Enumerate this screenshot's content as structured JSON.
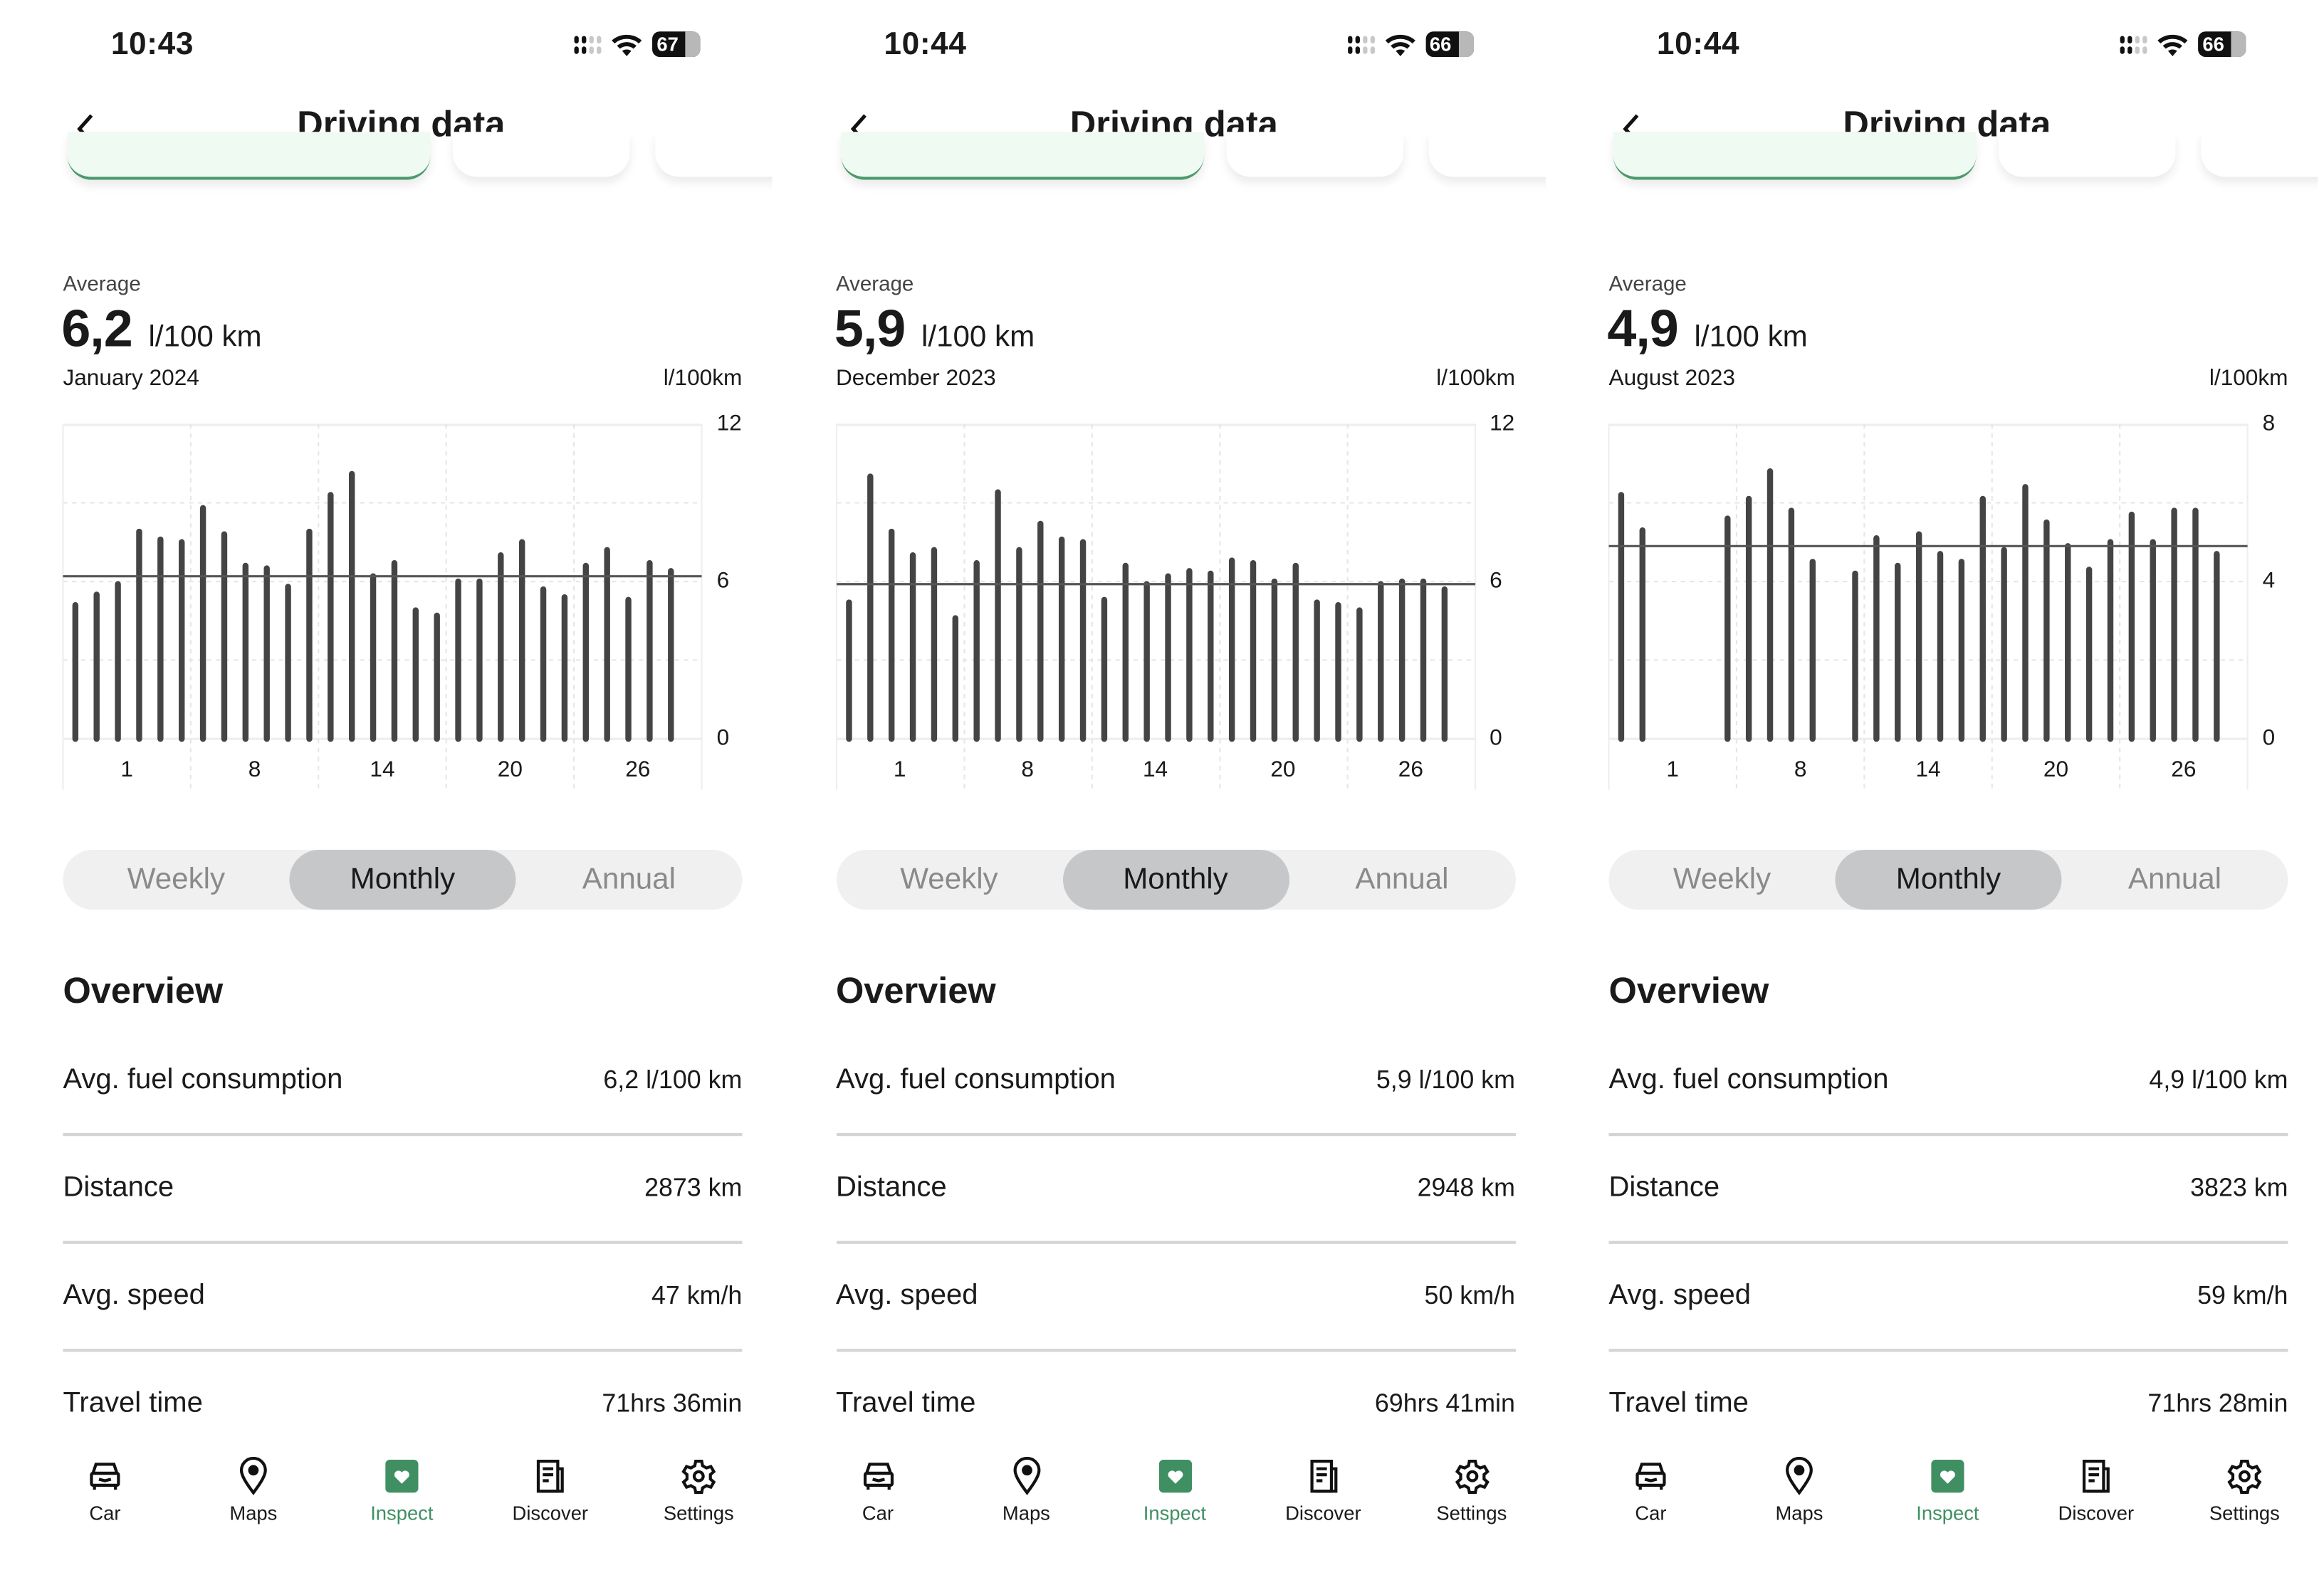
{
  "screens": [
    {
      "status": {
        "time": "10:43",
        "battery": "67"
      },
      "header": {
        "title": "Driving data"
      },
      "summary": {
        "label": "Average",
        "value": "6,2",
        "unit": "l/100 km",
        "period": "January 2024",
        "axis_unit": "l/100km"
      },
      "segments": [
        {
          "label": "Weekly",
          "active": false
        },
        {
          "label": "Monthly",
          "active": true
        },
        {
          "label": "Annual",
          "active": false
        }
      ],
      "overview": {
        "title": "Overview",
        "rows": [
          {
            "label": "Avg. fuel consumption",
            "value": "6,2 l/100 km"
          },
          {
            "label": "Distance",
            "value": "2873 km"
          },
          {
            "label": "Avg. speed",
            "value": "47 km/h"
          },
          {
            "label": "Travel time",
            "value": "71hrs 36min"
          }
        ]
      }
    },
    {
      "status": {
        "time": "10:44",
        "battery": "66"
      },
      "header": {
        "title": "Driving data"
      },
      "summary": {
        "label": "Average",
        "value": "5,9",
        "unit": "l/100 km",
        "period": "December 2023",
        "axis_unit": "l/100km"
      },
      "segments": [
        {
          "label": "Weekly",
          "active": false
        },
        {
          "label": "Monthly",
          "active": true
        },
        {
          "label": "Annual",
          "active": false
        }
      ],
      "overview": {
        "title": "Overview",
        "rows": [
          {
            "label": "Avg. fuel consumption",
            "value": "5,9 l/100 km"
          },
          {
            "label": "Distance",
            "value": "2948 km"
          },
          {
            "label": "Avg. speed",
            "value": "50 km/h"
          },
          {
            "label": "Travel time",
            "value": "69hrs 41min"
          }
        ]
      }
    },
    {
      "status": {
        "time": "10:44",
        "battery": "66"
      },
      "header": {
        "title": "Driving data"
      },
      "summary": {
        "label": "Average",
        "value": "4,9",
        "unit": "l/100 km",
        "period": "August 2023",
        "axis_unit": "l/100km"
      },
      "segments": [
        {
          "label": "Weekly",
          "active": false
        },
        {
          "label": "Monthly",
          "active": true
        },
        {
          "label": "Annual",
          "active": false
        }
      ],
      "overview": {
        "title": "Overview",
        "rows": [
          {
            "label": "Avg. fuel consumption",
            "value": "4,9 l/100 km"
          },
          {
            "label": "Distance",
            "value": "3823 km"
          },
          {
            "label": "Avg. speed",
            "value": "59 km/h"
          },
          {
            "label": "Travel time",
            "value": "71hrs 28min"
          }
        ]
      }
    }
  ],
  "nav": [
    {
      "label": "Car",
      "icon": "car-icon",
      "active": false
    },
    {
      "label": "Maps",
      "icon": "map-pin-icon",
      "active": false
    },
    {
      "label": "Inspect",
      "icon": "inspect-heart-icon",
      "active": true
    },
    {
      "label": "Discover",
      "icon": "news-icon",
      "active": false
    },
    {
      "label": "Settings",
      "icon": "gear-icon",
      "active": false
    }
  ],
  "colors": {
    "accent": "#3f8f63",
    "bar": "#444444",
    "segment_bg": "#f0f0f0",
    "segment_active": "#c6c7c9"
  },
  "chart_data": [
    {
      "type": "bar",
      "title": "",
      "xlabel": "",
      "ylabel": "l/100km",
      "ylim": [
        0,
        12
      ],
      "yticks": [
        "0",
        "6",
        "12"
      ],
      "grid": true,
      "xtick_labels": [
        "1",
        "8",
        "14",
        "20",
        "26"
      ],
      "average_line": 6.2,
      "values": [
        5.1,
        5.5,
        5.9,
        7.9,
        7.6,
        7.5,
        8.8,
        7.8,
        6.6,
        6.5,
        5.8,
        7.9,
        9.3,
        10.1,
        6.2,
        6.7,
        4.9,
        4.7,
        6.0,
        6.0,
        7.0,
        7.5,
        5.7,
        5.4,
        6.6,
        7.2,
        5.3,
        6.7,
        6.4
      ]
    },
    {
      "type": "bar",
      "title": "",
      "xlabel": "",
      "ylabel": "l/100km",
      "ylim": [
        0,
        12
      ],
      "yticks": [
        "0",
        "6",
        "12"
      ],
      "grid": true,
      "xtick_labels": [
        "1",
        "8",
        "14",
        "20",
        "26"
      ],
      "average_line": 5.9,
      "values": [
        5.2,
        10.0,
        7.9,
        7.0,
        7.2,
        4.6,
        6.7,
        9.4,
        7.2,
        8.2,
        7.6,
        7.5,
        5.3,
        6.6,
        5.9,
        6.2,
        6.4,
        6.3,
        6.8,
        6.7,
        6.0,
        6.6,
        5.2,
        5.1,
        4.9,
        5.9,
        6.0,
        6.0,
        5.7
      ]
    },
    {
      "type": "bar",
      "title": "",
      "xlabel": "",
      "ylabel": "l/100km",
      "ylim": [
        0,
        8
      ],
      "yticks": [
        "0",
        "4",
        "8"
      ],
      "grid": true,
      "xtick_labels": [
        "1",
        "8",
        "14",
        "20",
        "26"
      ],
      "average_line": 4.9,
      "values": [
        6.2,
        5.3,
        0,
        0,
        0,
        5.6,
        6.1,
        6.8,
        5.8,
        4.5,
        0,
        4.2,
        5.1,
        4.4,
        5.2,
        4.7,
        4.5,
        6.1,
        4.8,
        6.4,
        5.5,
        4.9,
        4.3,
        5.0,
        5.7,
        5.0,
        5.8,
        5.8,
        4.7
      ]
    }
  ]
}
